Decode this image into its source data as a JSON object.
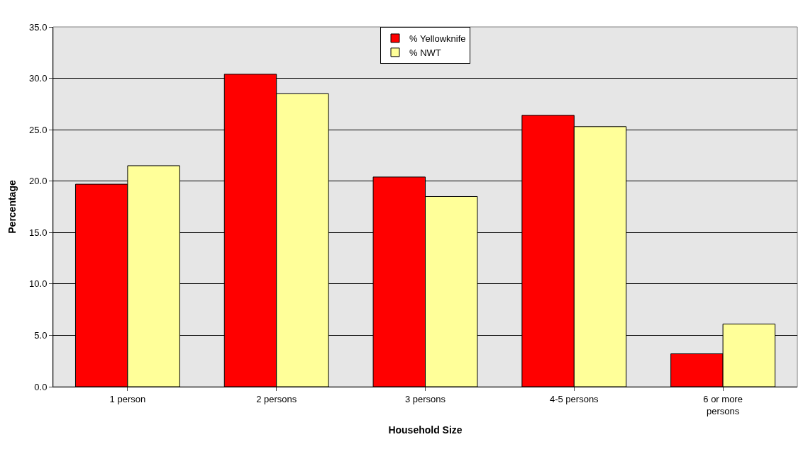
{
  "chart_data": {
    "type": "bar",
    "xlabel": "Household Size",
    "ylabel": "Percentage",
    "categories": [
      "1 person",
      "2 persons",
      "3 persons",
      "4-5 persons",
      "6 or more persons"
    ],
    "series": [
      {
        "name": "% Yellowknife",
        "color": "#ff0000",
        "values": [
          19.7,
          30.4,
          20.4,
          26.4,
          3.2
        ]
      },
      {
        "name": "% NWT",
        "color": "#ffff99",
        "values": [
          21.5,
          28.5,
          18.5,
          25.3,
          6.1
        ]
      }
    ],
    "ylim": [
      0,
      35
    ],
    "yticks": [
      {
        "value": 0,
        "label": "0.0"
      },
      {
        "value": 5,
        "label": "5.0"
      },
      {
        "value": 10,
        "label": "10.0"
      },
      {
        "value": 15,
        "label": "15.0"
      },
      {
        "value": 20,
        "label": "20.0"
      },
      {
        "value": 25,
        "label": "25.0"
      },
      {
        "value": 30,
        "label": "30.0"
      },
      {
        "value": 35,
        "label": "35.0"
      }
    ],
    "grid": "y",
    "legend": "top"
  }
}
